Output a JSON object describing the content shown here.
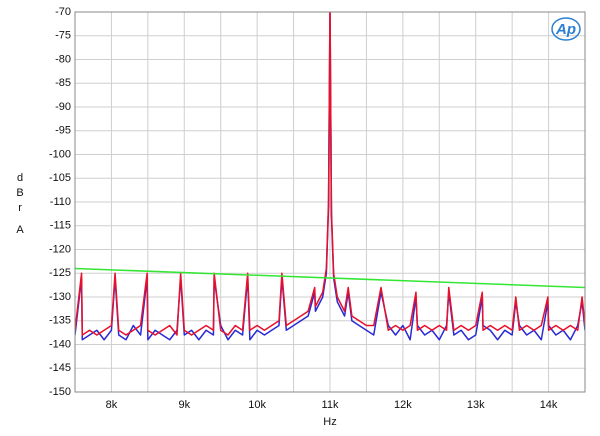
{
  "chart_data": {
    "type": "line",
    "xlabel": "Hz",
    "ylabel": "dBr",
    "ylabel_unit": "A",
    "logo": "Ap",
    "xlim": [
      7500,
      14500
    ],
    "ylim": [
      -150,
      -70
    ],
    "xticks": [
      {
        "value": 8000,
        "label": "8k"
      },
      {
        "value": 9000,
        "label": "9k"
      },
      {
        "value": 10000,
        "label": "10k"
      },
      {
        "value": 11000,
        "label": "11k"
      },
      {
        "value": 12000,
        "label": "12k"
      },
      {
        "value": 13000,
        "label": "13k"
      },
      {
        "value": 14000,
        "label": "14k"
      }
    ],
    "xminorticks": [
      7500,
      8500,
      9500,
      10500,
      11500,
      12500,
      13500,
      14500
    ],
    "yticks": [
      -150,
      -145,
      -140,
      -135,
      -130,
      -125,
      -120,
      -115,
      -110,
      -105,
      -100,
      -95,
      -90,
      -85,
      -80,
      -75,
      -70
    ],
    "grid": true,
    "series": [
      {
        "color": "#2b2bd6",
        "x": [
          7500,
          7590,
          7600,
          7700,
          7800,
          7900,
          8000,
          8050,
          8100,
          8200,
          8300,
          8400,
          8490,
          8500,
          8600,
          8700,
          8800,
          8900,
          8950,
          9000,
          9100,
          9200,
          9300,
          9400,
          9410,
          9500,
          9600,
          9700,
          9800,
          9870,
          9900,
          10000,
          10100,
          10200,
          10300,
          10340,
          10400,
          10500,
          10600,
          10700,
          10790,
          10800,
          10900,
          10950,
          10980,
          11000,
          11020,
          11050,
          11100,
          11200,
          11250,
          11300,
          11400,
          11500,
          11600,
          11700,
          11800,
          11900,
          12000,
          12100,
          12180,
          12200,
          12300,
          12400,
          12500,
          12600,
          12630,
          12700,
          12800,
          12900,
          13000,
          13090,
          13100,
          13200,
          13300,
          13400,
          13500,
          13550,
          13600,
          13700,
          13800,
          13900,
          13990,
          14000,
          14100,
          14200,
          14300,
          14400,
          14460,
          14500
        ],
        "values": [
          -138,
          -126,
          -139,
          -138,
          -137,
          -139,
          -137,
          -126,
          -138,
          -139,
          -136,
          -138,
          -126,
          -139,
          -137,
          -138,
          -139,
          -137,
          -126,
          -138,
          -137,
          -139,
          -137,
          -138,
          -126,
          -136,
          -139,
          -137,
          -138,
          -126,
          -139,
          -137,
          -138,
          -137,
          -136,
          -126,
          -137,
          -136,
          -135,
          -134,
          -129,
          -133,
          -130,
          -125,
          -111,
          -69,
          -113,
          -126,
          -131,
          -134,
          -129,
          -135,
          -136,
          -137,
          -138,
          -129,
          -136,
          -138,
          -136,
          -139,
          -130,
          -136,
          -138,
          -137,
          -139,
          -136,
          -129,
          -138,
          -137,
          -139,
          -138,
          -130,
          -136,
          -137,
          -139,
          -137,
          -138,
          -131,
          -136,
          -138,
          -137,
          -139,
          -131,
          -136,
          -138,
          -137,
          -139,
          -136,
          -131,
          -137
        ]
      },
      {
        "color": "#e8102a",
        "x": [
          7500,
          7590,
          7600,
          7700,
          7800,
          7900,
          8000,
          8050,
          8100,
          8200,
          8300,
          8400,
          8490,
          8500,
          8600,
          8700,
          8800,
          8900,
          8950,
          9000,
          9100,
          9200,
          9300,
          9400,
          9410,
          9500,
          9600,
          9700,
          9800,
          9870,
          9900,
          10000,
          10100,
          10200,
          10300,
          10340,
          10400,
          10500,
          10600,
          10700,
          10790,
          10800,
          10900,
          10950,
          10980,
          11000,
          11020,
          11050,
          11100,
          11200,
          11250,
          11300,
          11400,
          11500,
          11600,
          11700,
          11800,
          11900,
          12000,
          12100,
          12180,
          12200,
          12300,
          12400,
          12500,
          12600,
          12630,
          12700,
          12800,
          12900,
          13000,
          13090,
          13100,
          13200,
          13300,
          13400,
          13500,
          13550,
          13600,
          13700,
          13800,
          13900,
          13990,
          14000,
          14100,
          14200,
          14300,
          14400,
          14460,
          14500
        ],
        "values": [
          -137,
          -125,
          -138,
          -137,
          -138,
          -137,
          -136,
          -125,
          -137,
          -138,
          -137,
          -136,
          -125,
          -137,
          -138,
          -137,
          -136,
          -138,
          -125,
          -137,
          -138,
          -137,
          -136,
          -137,
          -125,
          -137,
          -138,
          -136,
          -137,
          -125,
          -137,
          -136,
          -137,
          -136,
          -135,
          -125,
          -136,
          -135,
          -134,
          -133,
          -128,
          -132,
          -129,
          -124,
          -110,
          -68,
          -112,
          -125,
          -130,
          -133,
          -128,
          -134,
          -135,
          -136,
          -136,
          -128,
          -137,
          -136,
          -137,
          -136,
          -129,
          -137,
          -136,
          -137,
          -136,
          -137,
          -128,
          -137,
          -136,
          -137,
          -136,
          -129,
          -137,
          -136,
          -137,
          -136,
          -137,
          -130,
          -137,
          -136,
          -137,
          -136,
          -130,
          -137,
          -136,
          -137,
          -136,
          -137,
          -130,
          -136
        ]
      },
      {
        "color": "#33e633",
        "x": [
          7500,
          14500
        ],
        "values": [
          -124,
          -128
        ]
      }
    ]
  }
}
